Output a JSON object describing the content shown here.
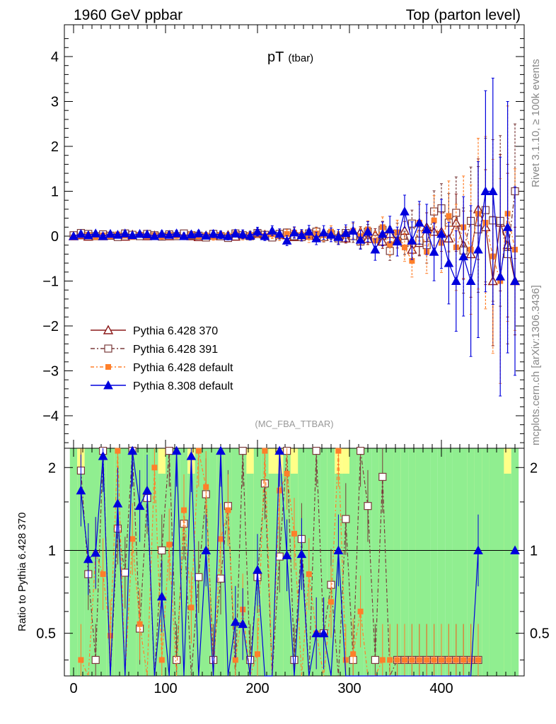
{
  "header": {
    "left": "1960 GeV ppbar",
    "right": "Top (parton level)"
  },
  "side": {
    "rivet": "Rivet 3.1.10, ≥ 100k events",
    "mcplots": "mcplots.cern.ch [arXiv:1306.3436]"
  },
  "plot": {
    "title": "pT",
    "title_sub": "(tbar)",
    "analysis": "(MC_FBA_TTBAR)",
    "ratio_ylabel": "Ratio to Pythia 6.428 370"
  },
  "colors": {
    "p370": "#8b1a1a",
    "p391": "#7a3b3b",
    "pdef": "#ff7f2a",
    "p8": "#0000dd",
    "band_green": "#90ee90",
    "band_yellow": "#ffff88"
  },
  "chart_data": {
    "type": "line",
    "xlim": [
      -10,
      490
    ],
    "ylim": [
      -4.7,
      4.7
    ],
    "ratio_ylim": [
      0.35,
      2.35
    ],
    "x_ticks": [
      "0",
      "100",
      "200",
      "300",
      "400"
    ],
    "y_ticks": [
      "4",
      "3",
      "2",
      "1",
      "0",
      "−1",
      "−2",
      "−3",
      "−4"
    ],
    "ratio_ticks": [
      "2",
      "1",
      "0.5"
    ],
    "legend_position": "middle-left",
    "x": [
      0,
      8,
      16,
      24,
      32,
      40,
      48,
      56,
      64,
      72,
      80,
      88,
      96,
      104,
      112,
      120,
      128,
      136,
      144,
      152,
      160,
      168,
      176,
      184,
      192,
      200,
      208,
      216,
      224,
      232,
      240,
      248,
      256,
      264,
      272,
      280,
      288,
      296,
      304,
      312,
      320,
      328,
      336,
      344,
      352,
      360,
      368,
      376,
      384,
      392,
      400,
      408,
      416,
      424,
      432,
      440,
      448,
      456,
      464,
      472,
      480
    ],
    "series": [
      {
        "name": "Pythia 6.428 370",
        "marker": "open-triangle",
        "values": [
          0.0,
          0.02,
          -0.01,
          0.03,
          0.0,
          0.02,
          0.01,
          -0.01,
          0.03,
          0.02,
          0.0,
          0.01,
          0.02,
          0.0,
          0.03,
          0.01,
          0.0,
          -0.02,
          0.01,
          0.03,
          0.0,
          0.02,
          -0.01,
          0.04,
          0.02,
          0.05,
          0.03,
          0.0,
          0.06,
          0.02,
          -0.02,
          0.04,
          0.01,
          0.06,
          -0.01,
          0.05,
          0.0,
          -0.05,
          0.04,
          0.09,
          -0.06,
          0.03,
          -0.12,
          0.05,
          -0.08,
          0.12,
          -0.3,
          -0.15,
          0.2,
          0.1,
          0.1,
          -0.05,
          0.3,
          -0.2,
          -0.4,
          0.6,
          0.2,
          -1.0,
          0.3,
          -0.2,
          -1.0
        ],
        "errors": [
          0.04,
          0.04,
          0.04,
          0.04,
          0.04,
          0.04,
          0.04,
          0.04,
          0.04,
          0.04,
          0.04,
          0.04,
          0.05,
          0.05,
          0.05,
          0.05,
          0.05,
          0.05,
          0.05,
          0.06,
          0.06,
          0.06,
          0.06,
          0.07,
          0.07,
          0.07,
          0.07,
          0.08,
          0.08,
          0.08,
          0.09,
          0.09,
          0.1,
          0.1,
          0.11,
          0.11,
          0.12,
          0.13,
          0.14,
          0.15,
          0.16,
          0.17,
          0.19,
          0.21,
          0.23,
          0.26,
          0.3,
          0.34,
          0.4,
          0.46,
          0.55,
          0.65,
          0.8,
          0.95,
          1.2,
          1.4,
          1.6,
          1.8,
          1.9,
          2.0,
          1.5
        ]
      },
      {
        "name": "Pythia 6.428 391",
        "marker": "open-square",
        "values": [
          0.02,
          0.07,
          0.05,
          0.0,
          0.04,
          0.01,
          -0.02,
          0.06,
          0.03,
          0.0,
          0.05,
          0.02,
          -0.01,
          0.04,
          0.0,
          0.06,
          0.02,
          0.01,
          -0.03,
          0.05,
          0.0,
          -0.04,
          0.06,
          0.02,
          0.0,
          0.07,
          0.03,
          -0.03,
          0.05,
          0.08,
          0.0,
          -0.02,
          0.06,
          0.1,
          -0.02,
          0.04,
          -0.05,
          0.07,
          0.0,
          -0.12,
          0.1,
          -0.06,
          0.14,
          -0.33,
          0.06,
          -0.15,
          0.28,
          -0.1,
          -0.2,
          0.55,
          0.62,
          0.3,
          0.52,
          -0.32,
          0.34,
          0.15,
          0.58,
          0.35,
          0.34,
          -0.4,
          1.0
        ],
        "errors": [
          0.04,
          0.04,
          0.04,
          0.04,
          0.04,
          0.04,
          0.04,
          0.04,
          0.04,
          0.04,
          0.04,
          0.04,
          0.05,
          0.05,
          0.05,
          0.05,
          0.05,
          0.05,
          0.05,
          0.06,
          0.06,
          0.06,
          0.06,
          0.07,
          0.07,
          0.07,
          0.07,
          0.08,
          0.08,
          0.08,
          0.09,
          0.09,
          0.1,
          0.1,
          0.11,
          0.11,
          0.12,
          0.13,
          0.14,
          0.15,
          0.16,
          0.17,
          0.19,
          0.21,
          0.23,
          0.26,
          0.3,
          0.34,
          0.4,
          0.46,
          0.55,
          0.65,
          0.8,
          0.95,
          1.2,
          1.4,
          1.6,
          1.8,
          1.9,
          2.0,
          1.5
        ]
      },
      {
        "name": "Pythia 6.428 default",
        "marker": "filled-square",
        "values": [
          -0.03,
          0.01,
          0.03,
          -0.02,
          0.02,
          0.0,
          0.04,
          0.01,
          -0.02,
          0.03,
          0.0,
          0.02,
          -0.01,
          0.03,
          0.01,
          -0.02,
          0.04,
          0.0,
          0.02,
          -0.02,
          0.03,
          0.01,
          0.05,
          0.0,
          0.02,
          0.06,
          0.01,
          0.04,
          0.0,
          0.05,
          0.08,
          0.03,
          -0.02,
          0.06,
          0.02,
          0.1,
          -0.04,
          0.05,
          0.12,
          0.0,
          0.15,
          -0.1,
          0.2,
          -0.18,
          0.08,
          -0.25,
          -0.55,
          0.3,
          -0.35,
          0.35,
          -0.15,
          0.45,
          -0.25,
          0.2,
          -0.3,
          0.5,
          0.3,
          -0.45,
          -1.0,
          0.5,
          -0.3
        ],
        "errors": [
          0.04,
          0.04,
          0.04,
          0.04,
          0.04,
          0.04,
          0.04,
          0.04,
          0.04,
          0.04,
          0.04,
          0.04,
          0.05,
          0.05,
          0.05,
          0.05,
          0.05,
          0.05,
          0.05,
          0.06,
          0.06,
          0.06,
          0.06,
          0.07,
          0.07,
          0.07,
          0.07,
          0.08,
          0.08,
          0.08,
          0.09,
          0.09,
          0.1,
          0.1,
          0.11,
          0.11,
          0.12,
          0.13,
          0.14,
          0.15,
          0.16,
          0.17,
          0.19,
          0.21,
          0.23,
          0.26,
          0.3,
          0.34,
          0.4,
          0.46,
          0.55,
          0.65,
          0.8,
          0.95,
          1.2,
          1.4,
          1.6,
          1.8,
          1.9,
          2.0,
          1.5
        ]
      },
      {
        "name": "Pythia 8.308 default",
        "marker": "filled-triangle",
        "values": [
          0.0,
          0.05,
          0.02,
          0.06,
          0.0,
          0.05,
          0.03,
          0.06,
          0.02,
          0.05,
          0.04,
          0.0,
          0.05,
          0.03,
          0.06,
          0.0,
          0.04,
          0.06,
          0.01,
          0.05,
          0.03,
          0.0,
          0.06,
          0.04,
          0.01,
          0.1,
          0.0,
          0.12,
          0.05,
          -0.1,
          0.08,
          0.02,
          0.1,
          -0.05,
          0.08,
          0.03,
          -0.02,
          0.07,
          0.12,
          -0.08,
          0.1,
          -0.3,
          0.05,
          0.15,
          -0.12,
          0.55,
          -0.1,
          0.3,
          0.15,
          -0.35,
          0.05,
          -0.6,
          -1.0,
          -0.45,
          -1.0,
          -0.3,
          1.0,
          1.0,
          -0.9,
          0.2,
          -1.0
        ],
        "errors": [
          0.04,
          0.04,
          0.04,
          0.04,
          0.04,
          0.04,
          0.04,
          0.04,
          0.04,
          0.04,
          0.04,
          0.04,
          0.05,
          0.05,
          0.05,
          0.05,
          0.05,
          0.05,
          0.05,
          0.06,
          0.06,
          0.06,
          0.06,
          0.07,
          0.07,
          0.07,
          0.07,
          0.08,
          0.08,
          0.08,
          0.09,
          0.09,
          0.1,
          0.1,
          0.11,
          0.11,
          0.12,
          0.13,
          0.14,
          0.15,
          0.16,
          0.17,
          0.19,
          0.21,
          0.23,
          0.26,
          0.3,
          0.34,
          0.4,
          0.46,
          0.55,
          0.65,
          0.8,
          0.95,
          1.2,
          1.4,
          1.6,
          1.8,
          1.9,
          2.0,
          1.5
        ]
      }
    ],
    "ratio": {
      "x": [
        8,
        16,
        24,
        32,
        40,
        48,
        56,
        64,
        72,
        80,
        88,
        96,
        104,
        112,
        120,
        128,
        136,
        144,
        152,
        160,
        168,
        176,
        184,
        192,
        200,
        208,
        216,
        224,
        232,
        240,
        248,
        256,
        264,
        272,
        280,
        288,
        296,
        304,
        312,
        320,
        328,
        336,
        344,
        352,
        360,
        368,
        376,
        384,
        392,
        400,
        408,
        416,
        424,
        432,
        440
      ],
      "series": [
        {
          "name": "Pythia 6.428 391",
          "values": [
            1.95,
            0.82,
            0.4,
            2.3,
            0.35,
            1.2,
            0.83,
            2.3,
            0.52,
            1.55,
            0.35,
            1.0,
            2.3,
            0.4,
            1.25,
            0.35,
            0.8,
            1.6,
            0.4,
            0.79,
            1.45,
            0.35,
            2.3,
            0.4,
            0.8,
            1.75,
            0.35,
            0.95,
            2.3,
            0.4,
            1.1,
            0.35,
            2.3,
            0.5,
            0.75,
            0.35,
            1.3,
            0.4,
            2.3,
            1.45,
            0.4,
            1.85,
            0.35,
            0.4,
            0.4,
            0.4,
            0.4,
            0.4,
            0.4,
            0.4,
            0.4,
            0.4,
            0.4,
            0.4,
            0.4
          ]
        },
        {
          "name": "Pythia 6.428 default",
          "values": [
            0.4,
            0.35,
            0.97,
            0.82,
            0.49,
            2.3,
            0.35,
            1.1,
            0.54,
            0.35,
            2.0,
            0.4,
            1.05,
            0.35,
            1.4,
            0.62,
            2.3,
            1.7,
            0.35,
            1.1,
            1.4,
            0.4,
            0.61,
            0.35,
            0.42,
            2.3,
            0.35,
            1.65,
            1.9,
            1.15,
            0.35,
            0.82,
            0.5,
            0.35,
            0.65,
            2.3,
            0.4,
            0.42,
            0.6,
            0.35,
            0.35,
            0.4,
            0.4,
            0.4,
            0.4,
            0.4,
            0.4,
            0.4,
            0.4,
            0.4,
            0.4,
            0.4,
            0.4,
            0.4,
            0.4
          ]
        },
        {
          "name": "Pythia 8.308 default",
          "values": [
            1.65,
            0.93,
            0.98,
            2.2,
            0.35,
            1.48,
            0.35,
            2.3,
            1.45,
            1.65,
            0.35,
            0.68,
            0.35,
            2.3,
            0.35,
            2.2,
            0.35,
            1.0,
            0.35,
            2.3,
            0.35,
            0.55,
            0.54,
            0.35,
            0.85,
            0.35,
            0.35,
            2.3,
            0.96,
            0.35,
            0.97,
            0.35,
            0.5,
            0.5,
            0.35,
            1.0,
            0.35,
            0.35,
            0.35,
            0.35,
            0.35,
            0.35,
            0.35,
            0.35,
            0.35,
            0.35,
            0.35,
            0.35,
            0.35,
            0.35,
            0.35,
            0.35,
            0.35,
            0.35,
            1.0
          ]
        }
      ]
    }
  }
}
